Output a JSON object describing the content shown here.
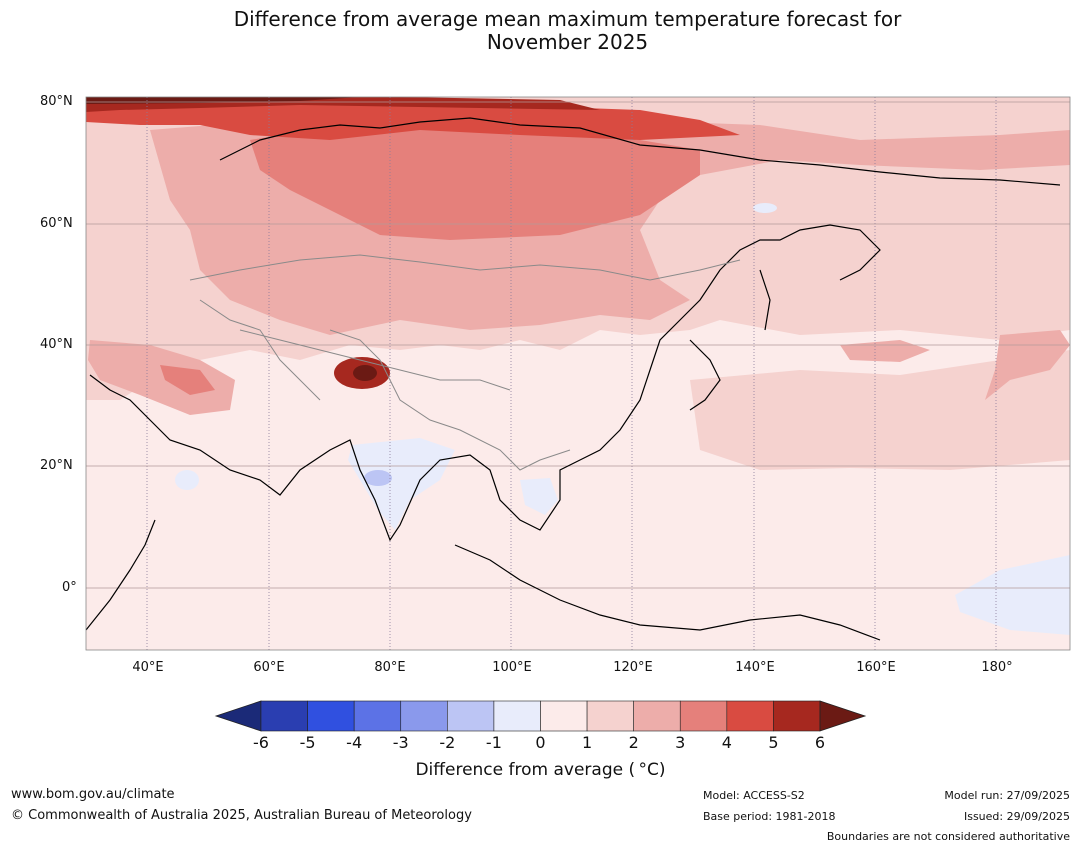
{
  "title_line1": "Difference from average mean maximum temperature forecast for",
  "title_line2": "November 2025",
  "lat_ticks": [
    "80°N",
    "60°N",
    "40°N",
    "20°N",
    "0°"
  ],
  "lon_ticks": [
    "40°E",
    "60°E",
    "80°E",
    "100°E",
    "120°E",
    "140°E",
    "160°E",
    "180°"
  ],
  "colorbar": {
    "ticks": [
      "-6",
      "-5",
      "-4",
      "-3",
      "-2",
      "-1",
      "0",
      "1",
      "2",
      "3",
      "4",
      "5",
      "6"
    ],
    "label": "Difference from average ( °C)",
    "colors": [
      "#1b2a78",
      "#2a3eb1",
      "#3050e0",
      "#5c72e6",
      "#8a99ec",
      "#bcc5f4",
      "#e8ecfb",
      "#fcebea",
      "#f5d2cf",
      "#edadaa",
      "#e5807b",
      "#d94b41",
      "#a6281f",
      "#6b1a14"
    ]
  },
  "footer": {
    "website": "www.bom.gov.au/climate",
    "copyright": "© Commonwealth of Australia 2025, Australian Bureau of Meteorology",
    "model": "Model: ACCESS-S2",
    "base_period": "Base period: 1981-2018",
    "model_run": "Model run: 27/09/2025",
    "issued": "Issued: 29/09/2025",
    "disclaimer": "Boundaries are not considered authoritative"
  }
}
